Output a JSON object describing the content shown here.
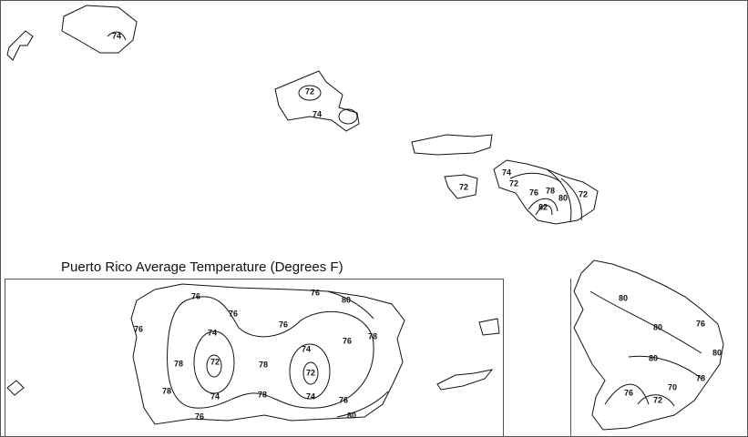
{
  "title": "Puerto Rico Average Temperature (Degrees F)",
  "hawaii_labels": [
    74,
    72,
    74,
    72,
    74,
    72,
    76,
    78,
    80,
    82,
    72,
    80,
    80,
    76,
    80,
    80,
    78,
    76,
    72,
    70
  ],
  "puerto_rico_labels": [
    76,
    76,
    76,
    74,
    72,
    74,
    78,
    78,
    76,
    78,
    76,
    78,
    74,
    72,
    74,
    76,
    80,
    76,
    78,
    76,
    80
  ]
}
